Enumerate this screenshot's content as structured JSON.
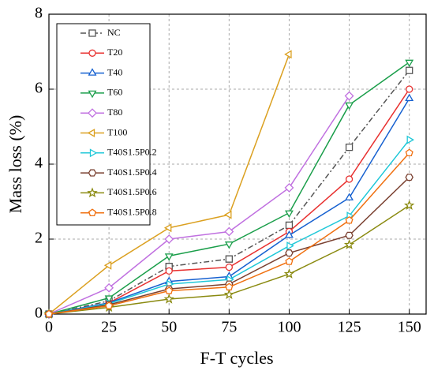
{
  "chart_data": {
    "type": "line",
    "xlabel": "F-T cycles",
    "ylabel": "Mass loss  (%)",
    "x": [
      0,
      25,
      50,
      75,
      100,
      125,
      150
    ],
    "xlim": [
      0,
      157
    ],
    "xticks": [
      0,
      25,
      50,
      75,
      100,
      125,
      150
    ],
    "ylim": [
      0,
      8
    ],
    "yticks": [
      0,
      2,
      4,
      6,
      8
    ],
    "grid": true,
    "legend": "upper left",
    "series": [
      {
        "name": "NC",
        "color": "#555555",
        "marker": "square",
        "dash": "dashdot",
        "values": [
          0,
          0.35,
          1.27,
          1.47,
          2.37,
          4.45,
          6.5
        ]
      },
      {
        "name": "T20",
        "color": "#e8302f",
        "marker": "circle",
        "values": [
          0,
          0.3,
          1.15,
          1.25,
          2.2,
          3.6,
          6.0
        ]
      },
      {
        "name": "T40",
        "color": "#1560d0",
        "marker": "triangle-up",
        "values": [
          0,
          0.3,
          0.87,
          1.0,
          2.1,
          3.1,
          5.75
        ]
      },
      {
        "name": "T60",
        "color": "#1a9e4a",
        "marker": "triangle-down",
        "values": [
          0,
          0.43,
          1.55,
          1.87,
          2.7,
          5.58,
          6.72
        ]
      },
      {
        "name": "T80",
        "color": "#c070e0",
        "marker": "diamond",
        "values": [
          0,
          0.7,
          2.0,
          2.2,
          3.37,
          5.82,
          null
        ]
      },
      {
        "name": "T100",
        "color": "#dba020",
        "marker": "triangle-left",
        "values": [
          0,
          1.3,
          2.3,
          2.65,
          6.93,
          null,
          null
        ]
      },
      {
        "name": "T40S1.5P0.2",
        "color": "#20c8d8",
        "marker": "triangle-right",
        "values": [
          0,
          0.28,
          0.8,
          0.92,
          1.82,
          2.62,
          4.65
        ]
      },
      {
        "name": "T40S1.5P0.4",
        "color": "#7a4030",
        "marker": "hexagon",
        "values": [
          0,
          0.25,
          0.67,
          0.8,
          1.63,
          2.1,
          3.65
        ]
      },
      {
        "name": "T40S1.5P0.6",
        "color": "#8a8a10",
        "marker": "star",
        "values": [
          0,
          0.18,
          0.4,
          0.52,
          1.07,
          1.85,
          2.9
        ]
      },
      {
        "name": "T40S1.5P0.8",
        "color": "#f07010",
        "marker": "pentagon",
        "values": [
          0,
          0.22,
          0.62,
          0.72,
          1.4,
          2.5,
          4.3
        ]
      }
    ]
  }
}
